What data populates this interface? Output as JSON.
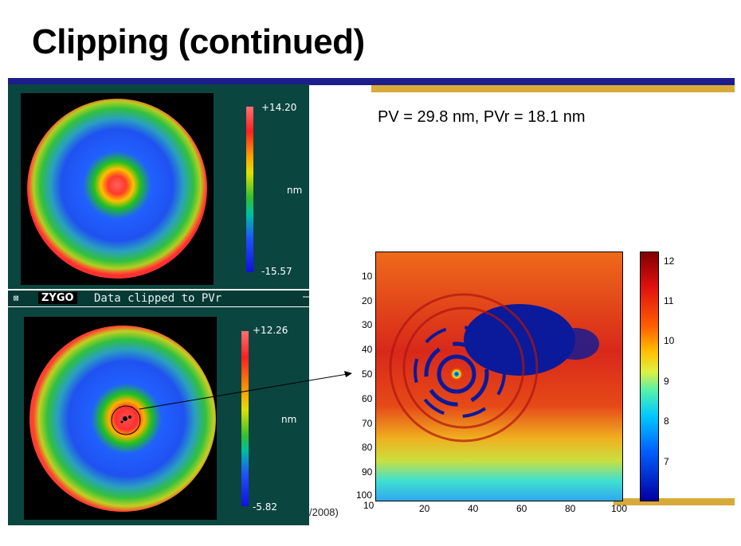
{
  "slide": {
    "title": "Clipping (continued)",
    "pv_text": "PV = 29.8 nm, PVr = 18.1 nm",
    "footer_fragment": "/2008)"
  },
  "zygo_top": {
    "max_label": "+14.20",
    "min_label": "-15.57",
    "unit": "nm"
  },
  "zygo_toolbar": {
    "close_symbol": "⊠",
    "logo": "ZYGO",
    "message": "Data clipped to PVr",
    "dash": "–"
  },
  "zygo_bottom": {
    "max_label": "+12.26",
    "min_label": "-5.82",
    "unit": "nm"
  },
  "map": {
    "y_ticks": [
      "10",
      "20",
      "30",
      "40",
      "50",
      "60",
      "70",
      "80",
      "90",
      "100"
    ],
    "x_ticks": [
      "10",
      "20",
      "40",
      "60",
      "80",
      "100"
    ],
    "colorbar_ticks": [
      "12",
      "11",
      "10",
      "9",
      "8",
      "7"
    ]
  },
  "colors": {
    "panel_bg": "#0b4540",
    "blue_rule": "#1d1d8c",
    "gold_rule": "#d8aa3a"
  }
}
